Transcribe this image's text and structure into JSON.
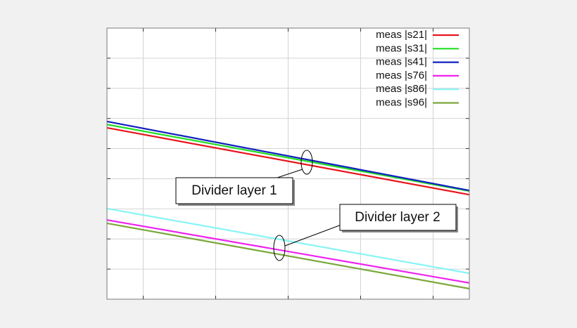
{
  "chart_data": {
    "type": "line",
    "x": [
      0,
      10
    ],
    "xlim": [
      0,
      10
    ],
    "xticks": [
      1,
      3,
      5,
      7,
      9
    ],
    "ylim": [
      0,
      9
    ],
    "yticks": [
      1,
      2,
      3,
      4,
      5,
      6,
      7,
      8
    ],
    "grid": true,
    "legend": "upper right",
    "series": [
      {
        "name": "meas |s21|",
        "color": "#e8141c",
        "values": [
          5.69,
          3.47
        ]
      },
      {
        "name": "meas |s31|",
        "color": "#22dd22",
        "values": [
          5.8,
          3.59
        ]
      },
      {
        "name": "meas |s41|",
        "color": "#1020c0",
        "values": [
          5.9,
          3.61
        ]
      },
      {
        "name": "meas |s76|",
        "color": "#ee22ee",
        "values": [
          2.63,
          0.54
        ]
      },
      {
        "name": "meas |s86|",
        "color": "#88f4f4",
        "values": [
          3.01,
          0.86
        ]
      },
      {
        "name": "meas |s96|",
        "color": "#7aa83a",
        "values": [
          2.52,
          0.35
        ]
      }
    ],
    "annotations": [
      "Divider layer 1",
      "Divider layer 2"
    ]
  }
}
